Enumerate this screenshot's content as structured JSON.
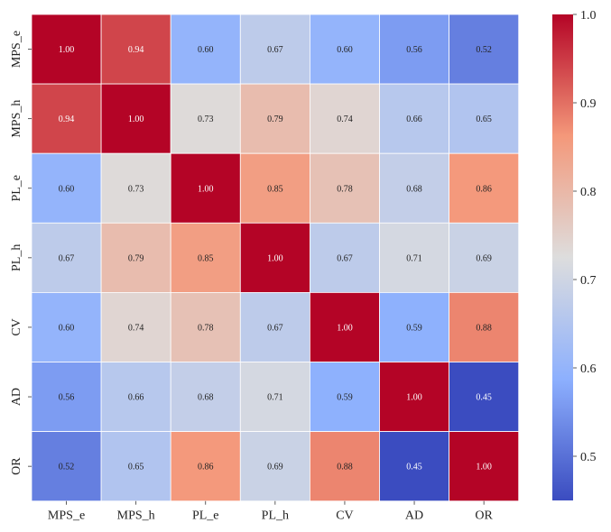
{
  "chart_data": {
    "type": "heatmap",
    "title": "",
    "xlabel": "",
    "ylabel": "",
    "labels": [
      "MPS_e",
      "MPS_h",
      "PL_e",
      "PL_h",
      "CV",
      "AD",
      "OR"
    ],
    "matrix": [
      [
        1.0,
        0.94,
        0.6,
        0.67,
        0.6,
        0.56,
        0.52
      ],
      [
        0.94,
        1.0,
        0.73,
        0.79,
        0.74,
        0.66,
        0.65
      ],
      [
        0.6,
        0.73,
        1.0,
        0.85,
        0.78,
        0.68,
        0.86
      ],
      [
        0.67,
        0.79,
        0.85,
        1.0,
        0.67,
        0.71,
        0.69
      ],
      [
        0.6,
        0.74,
        0.78,
        0.67,
        1.0,
        0.59,
        0.88
      ],
      [
        0.56,
        0.66,
        0.68,
        0.71,
        0.59,
        1.0,
        0.45
      ],
      [
        0.52,
        0.65,
        0.86,
        0.69,
        0.88,
        0.45,
        1.0
      ]
    ],
    "value_format": "0.00",
    "colormap": "coolwarm",
    "vmin": 0.45,
    "vmax": 1.0,
    "colorbar_ticks": [
      "0.5",
      "0.6",
      "0.7",
      "0.8",
      "0.9",
      "1.0"
    ],
    "colors": {
      "low": "#3b4cc0",
      "mid": "#dddddd",
      "high": "#b40426"
    }
  }
}
